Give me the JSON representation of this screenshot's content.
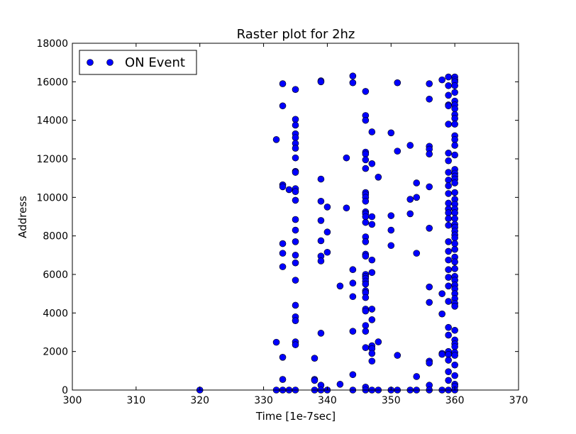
{
  "chart_data": {
    "type": "scatter",
    "title": "Raster plot for 2hz",
    "xlabel": "Time [1e-7sec]",
    "ylabel": "Address",
    "xlim": [
      300,
      370
    ],
    "ylim": [
      0,
      18000
    ],
    "xticks": [
      "300",
      "310",
      "320",
      "330",
      "340",
      "350",
      "360",
      "370"
    ],
    "yticks": [
      "0",
      "2000",
      "4000",
      "6000",
      "8000",
      "10000",
      "12000",
      "14000",
      "16000",
      "18000"
    ],
    "grid": false,
    "legend_position": "top-left",
    "marker_color": "#0000ff",
    "series": [
      {
        "name": "ON Event",
        "points": [
          [
            320,
            0
          ],
          [
            332,
            13000
          ],
          [
            332,
            2480
          ],
          [
            332,
            0
          ],
          [
            333,
            15900
          ],
          [
            333,
            14750
          ],
          [
            333,
            10650
          ],
          [
            333,
            10550
          ],
          [
            333,
            7600
          ],
          [
            333,
            7100
          ],
          [
            333,
            6400
          ],
          [
            333,
            1700
          ],
          [
            333,
            550
          ],
          [
            333,
            0
          ],
          [
            334,
            10400
          ],
          [
            334,
            0
          ],
          [
            335,
            15600
          ],
          [
            335,
            14050
          ],
          [
            335,
            13750
          ],
          [
            335,
            13300
          ],
          [
            335,
            13100
          ],
          [
            335,
            12800
          ],
          [
            335,
            12550
          ],
          [
            335,
            12050
          ],
          [
            335,
            11350
          ],
          [
            335,
            11300
          ],
          [
            335,
            10450
          ],
          [
            335,
            10300
          ],
          [
            335,
            9850
          ],
          [
            335,
            8850
          ],
          [
            335,
            8300
          ],
          [
            335,
            7700
          ],
          [
            335,
            7000
          ],
          [
            335,
            6600
          ],
          [
            335,
            5700
          ],
          [
            335,
            4400
          ],
          [
            335,
            3800
          ],
          [
            335,
            3600
          ],
          [
            335,
            2500
          ],
          [
            335,
            2350
          ],
          [
            335,
            0
          ],
          [
            338,
            1650
          ],
          [
            338,
            550
          ],
          [
            338,
            500
          ],
          [
            338,
            0
          ],
          [
            339,
            16050
          ],
          [
            339,
            16000
          ],
          [
            339,
            10950
          ],
          [
            339,
            9800
          ],
          [
            339,
            8800
          ],
          [
            339,
            7750
          ],
          [
            339,
            6950
          ],
          [
            339,
            6700
          ],
          [
            339,
            2950
          ],
          [
            339,
            250
          ],
          [
            339,
            0
          ],
          [
            340,
            9500
          ],
          [
            340,
            8200
          ],
          [
            340,
            7150
          ],
          [
            340,
            0
          ],
          [
            342,
            5400
          ],
          [
            342,
            300
          ],
          [
            343,
            12050
          ],
          [
            343,
            9450
          ],
          [
            344,
            16300
          ],
          [
            344,
            15950
          ],
          [
            344,
            6250
          ],
          [
            344,
            5550
          ],
          [
            344,
            4850
          ],
          [
            344,
            3050
          ],
          [
            344,
            800
          ],
          [
            344,
            0
          ],
          [
            346,
            15500
          ],
          [
            346,
            14250
          ],
          [
            346,
            14000
          ],
          [
            346,
            12350
          ],
          [
            346,
            12250
          ],
          [
            346,
            11950
          ],
          [
            346,
            11500
          ],
          [
            346,
            10250
          ],
          [
            346,
            10150
          ],
          [
            346,
            10000
          ],
          [
            346,
            9800
          ],
          [
            346,
            9250
          ],
          [
            346,
            9150
          ],
          [
            346,
            9000
          ],
          [
            346,
            8700
          ],
          [
            346,
            7950
          ],
          [
            346,
            7700
          ],
          [
            346,
            7050
          ],
          [
            346,
            6950
          ],
          [
            346,
            6000
          ],
          [
            346,
            5900
          ],
          [
            346,
            5800
          ],
          [
            346,
            5650
          ],
          [
            346,
            5500
          ],
          [
            346,
            5150
          ],
          [
            346,
            5050
          ],
          [
            346,
            4800
          ],
          [
            346,
            4200
          ],
          [
            346,
            4100
          ],
          [
            346,
            3350
          ],
          [
            346,
            3050
          ],
          [
            346,
            2200
          ],
          [
            346,
            150
          ],
          [
            346,
            0
          ],
          [
            347,
            13400
          ],
          [
            347,
            11750
          ],
          [
            347,
            9000
          ],
          [
            347,
            8600
          ],
          [
            347,
            6750
          ],
          [
            347,
            6100
          ],
          [
            347,
            4200
          ],
          [
            347,
            3650
          ],
          [
            347,
            2300
          ],
          [
            347,
            2150
          ],
          [
            347,
            1900
          ],
          [
            347,
            1500
          ],
          [
            347,
            0
          ],
          [
            348,
            11050
          ],
          [
            348,
            2500
          ],
          [
            348,
            0
          ],
          [
            350,
            13350
          ],
          [
            350,
            9050
          ],
          [
            350,
            8300
          ],
          [
            350,
            7500
          ],
          [
            350,
            0
          ],
          [
            351,
            15950
          ],
          [
            351,
            12400
          ],
          [
            351,
            1800
          ],
          [
            351,
            0
          ],
          [
            353,
            12700
          ],
          [
            353,
            9900
          ],
          [
            353,
            9150
          ],
          [
            353,
            0
          ],
          [
            354,
            10750
          ],
          [
            354,
            10000
          ],
          [
            354,
            7100
          ],
          [
            354,
            700
          ],
          [
            354,
            0
          ],
          [
            356,
            15900
          ],
          [
            356,
            15100
          ],
          [
            356,
            12650
          ],
          [
            356,
            12500
          ],
          [
            356,
            12250
          ],
          [
            356,
            10550
          ],
          [
            356,
            8400
          ],
          [
            356,
            5350
          ],
          [
            356,
            4550
          ],
          [
            356,
            1500
          ],
          [
            356,
            1400
          ],
          [
            356,
            250
          ],
          [
            356,
            0
          ],
          [
            358,
            16100
          ],
          [
            358,
            5000
          ],
          [
            358,
            3950
          ],
          [
            358,
            1900
          ],
          [
            358,
            1850
          ],
          [
            358,
            0
          ],
          [
            359,
            16250
          ],
          [
            359,
            15800
          ],
          [
            359,
            15300
          ],
          [
            359,
            14800
          ],
          [
            359,
            14750
          ],
          [
            359,
            13800
          ],
          [
            359,
            12300
          ],
          [
            359,
            11900
          ],
          [
            359,
            11300
          ],
          [
            359,
            10900
          ],
          [
            359,
            10600
          ],
          [
            359,
            10200
          ],
          [
            359,
            9700
          ],
          [
            359,
            9400
          ],
          [
            359,
            9200
          ],
          [
            359,
            8900
          ],
          [
            359,
            8550
          ],
          [
            359,
            7700
          ],
          [
            359,
            7200
          ],
          [
            359,
            6750
          ],
          [
            359,
            6250
          ],
          [
            359,
            5850
          ],
          [
            359,
            5400
          ],
          [
            359,
            4600
          ],
          [
            359,
            3250
          ],
          [
            359,
            2850
          ],
          [
            359,
            2000
          ],
          [
            359,
            1850
          ],
          [
            359,
            1550
          ],
          [
            359,
            950
          ],
          [
            359,
            500
          ],
          [
            359,
            0
          ],
          [
            360,
            16250
          ],
          [
            360,
            16100
          ],
          [
            360,
            16000
          ],
          [
            360,
            15800
          ],
          [
            360,
            15450
          ],
          [
            360,
            15000
          ],
          [
            360,
            14800
          ],
          [
            360,
            14600
          ],
          [
            360,
            14300
          ],
          [
            360,
            14100
          ],
          [
            360,
            13800
          ],
          [
            360,
            13200
          ],
          [
            360,
            13000
          ],
          [
            360,
            12700
          ],
          [
            360,
            12200
          ],
          [
            360,
            11450
          ],
          [
            360,
            11250
          ],
          [
            360,
            11100
          ],
          [
            360,
            10950
          ],
          [
            360,
            10750
          ],
          [
            360,
            10250
          ],
          [
            360,
            9900
          ],
          [
            360,
            9650
          ],
          [
            360,
            9400
          ],
          [
            360,
            9200
          ],
          [
            360,
            8900
          ],
          [
            360,
            8600
          ],
          [
            360,
            8450
          ],
          [
            360,
            8250
          ],
          [
            360,
            8050
          ],
          [
            360,
            7900
          ],
          [
            360,
            7600
          ],
          [
            360,
            7300
          ],
          [
            360,
            6900
          ],
          [
            360,
            6650
          ],
          [
            360,
            6300
          ],
          [
            360,
            5900
          ],
          [
            360,
            5700
          ],
          [
            360,
            5450
          ],
          [
            360,
            5250
          ],
          [
            360,
            5000
          ],
          [
            360,
            4750
          ],
          [
            360,
            4500
          ],
          [
            360,
            4350
          ],
          [
            360,
            3100
          ],
          [
            360,
            2600
          ],
          [
            360,
            2400
          ],
          [
            360,
            2250
          ],
          [
            360,
            1950
          ],
          [
            360,
            1800
          ],
          [
            360,
            1300
          ],
          [
            360,
            750
          ],
          [
            360,
            300
          ],
          [
            360,
            200
          ],
          [
            360,
            0
          ]
        ]
      }
    ]
  }
}
